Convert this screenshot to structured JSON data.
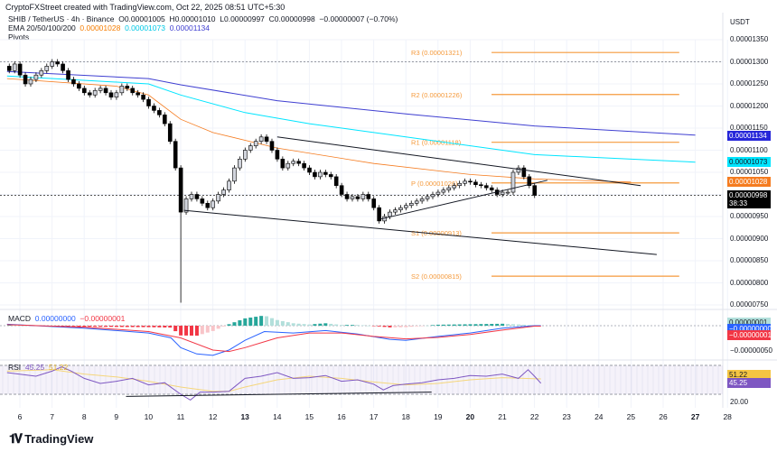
{
  "header": {
    "credit": "CryptoFXStreet created with TradingView.com, Oct 22, 2025 08:51 UTC+5:30",
    "symbol": "SHIB / TetherUS · 4h · Binance",
    "ohlc": {
      "o": "O0.00001005",
      "h": "H0.00001010",
      "l": "L0.00000997",
      "c": "C0.00000998",
      "change": "−0.00000007 (−0.70%)"
    },
    "ema_label": "EMA 20/50/100/200",
    "ema_values": [
      "0.00001028",
      "0.00001073",
      "0.00001134"
    ],
    "pivots_label": "Pivots"
  },
  "price_axis": {
    "currency": "USDT",
    "ticks": [
      "0.00001350",
      "0.00001300",
      "0.00001250",
      "0.00001200",
      "0.00001150",
      "0.00001100",
      "0.00001050",
      "0.00000950",
      "0.00000900",
      "0.00000850",
      "0.00000800",
      "0.00000750"
    ],
    "badges": [
      {
        "text": "0.00001134",
        "bg": "#2626d9",
        "fg": "#ffffff"
      },
      {
        "text": "0.00001073",
        "bg": "#00e5ff",
        "fg": "#131722"
      },
      {
        "text": "0.00001028",
        "bg": "#f57c20",
        "fg": "#ffffff"
      },
      {
        "text": "0.00000998",
        "sub": "38:33",
        "bg": "#000000",
        "fg": "#ffffff"
      }
    ]
  },
  "pivots": [
    {
      "label": "R3 (0.00001321)",
      "value": 1.321e-05
    },
    {
      "label": "R2 (0.00001226)",
      "value": 1.226e-05
    },
    {
      "label": "R1 (0.00001118)",
      "value": 1.118e-05
    },
    {
      "label": "P (0.00001026)",
      "value": 1.026e-05
    },
    {
      "label": "S1 (0.00000913)",
      "value": 9.13e-06
    },
    {
      "label": "S2 (0.00000815)",
      "value": 8.15e-06
    }
  ],
  "macd": {
    "label": "MACD",
    "values": [
      "0.00000000",
      "−0.00000001"
    ],
    "axis_badges": [
      {
        "text": "0.00000001",
        "bg": "#b2dfdb",
        "fg": "#131722"
      },
      {
        "text": "−0.00000000",
        "bg": "#2962ff",
        "fg": "#ffffff"
      },
      {
        "text": "−0.00000001",
        "bg": "#f23645",
        "fg": "#ffffff"
      }
    ],
    "axis_tick": "−0.00000050"
  },
  "rsi": {
    "label": "RSI",
    "values": [
      "45.25",
      "51.22"
    ],
    "axis_badges": [
      {
        "text": "51.22",
        "bg": "#f5c542",
        "fg": "#131722"
      },
      {
        "text": "45.25",
        "bg": "#7e57c2",
        "fg": "#ffffff"
      }
    ],
    "axis_tick": "20.00"
  },
  "time_axis": [
    "6",
    "7",
    "8",
    "9",
    "10",
    "11",
    "12",
    "13",
    "14",
    "15",
    "16",
    "17",
    "18",
    "19",
    "20",
    "21",
    "22",
    "23",
    "24",
    "25",
    "26",
    "27",
    "28"
  ],
  "brand": "TradingView",
  "colors": {
    "ema50": "#f57c20",
    "ema100": "#00e5ff",
    "ema200": "#3f3fd1",
    "pivot": "#f59a3c",
    "up": "#d1d4dc",
    "down": "#000000",
    "macd": "#2962ff",
    "signal": "#f23645",
    "hist_pos": "#26a69a",
    "hist_neg": "#f23645",
    "rsi": "#7e57c2",
    "rsi_ma": "#f5d67a"
  },
  "chart_data": {
    "type": "candlestick",
    "interval": "4h",
    "closes": [
      1.28e-05,
      1.295e-05,
      1.27e-05,
      1.25e-05,
      1.26e-05,
      1.27e-05,
      1.28e-05,
      1.29e-05,
      1.3e-05,
      1.295e-05,
      1.28e-05,
      1.26e-05,
      1.25e-05,
      1.24e-05,
      1.23e-05,
      1.225e-05,
      1.235e-05,
      1.24e-05,
      1.23e-05,
      1.22e-05,
      1.23e-05,
      1.245e-05,
      1.24e-05,
      1.23e-05,
      1.225e-05,
      1.215e-05,
      1.2e-05,
      1.19e-05,
      1.18e-05,
      1.16e-05,
      1.12e-05,
      1.06e-05,
      9.6e-06,
      9.9e-06,
      1e-05,
      9.9e-06,
      9.8e-06,
      9.7e-06,
      9.85e-06,
      1e-05,
      1.01e-05,
      1.03e-05,
      1.06e-05,
      1.08e-05,
      1.1e-05,
      1.11e-05,
      1.12e-05,
      1.13e-05,
      1.12e-05,
      1.1e-05,
      1.08e-05,
      1.06e-05,
      1.07e-05,
      1.075e-05,
      1.07e-05,
      1.06e-05,
      1.05e-05,
      1.04e-05,
      1.05e-05,
      1.045e-05,
      1.04e-05,
      1.02e-05,
      1e-05,
      9.9e-06,
      9.95e-06,
      9.9e-06,
      1e-05,
      9.9e-06,
      9.7e-06,
      9.4e-06,
      9.5e-06,
      9.6e-06,
      9.65e-06,
      9.7e-06,
      9.75e-06,
      9.8e-06,
      9.85e-06,
      9.9e-06,
      9.95e-06,
      1e-05,
      1.005e-05,
      1.01e-05,
      1.015e-05,
      1.02e-05,
      1.025e-05,
      1.03e-05,
      1.028e-05,
      1.022e-05,
      1.02e-05,
      1.015e-05,
      1.01e-05,
      1e-05,
      1.005e-05,
      1.005e-05,
      1.05e-05,
      1.06e-05,
      1.04e-05,
      1.02e-05,
      9.98e-06
    ],
    "crash_low": 7.55e-06,
    "ylim": [
      7.5e-06,
      1.35e-05
    ],
    "ema50": [
      [
        5.6,
        1.262e-05
      ],
      [
        9,
        1.245e-05
      ],
      [
        10,
        1.225e-05
      ],
      [
        11,
        1.17e-05
      ],
      [
        12,
        1.14e-05
      ],
      [
        14,
        1.105e-05
      ],
      [
        17,
        1.07e-05
      ],
      [
        20,
        1.045e-05
      ],
      [
        22,
        1.035e-05
      ],
      [
        25,
        1.028e-05
      ]
    ],
    "ema100": [
      [
        5.6,
        1.268e-05
      ],
      [
        10,
        1.25e-05
      ],
      [
        11,
        1.225e-05
      ],
      [
        13,
        1.185e-05
      ],
      [
        15,
        1.16e-05
      ],
      [
        18,
        1.13e-05
      ],
      [
        22,
        1.09e-05
      ],
      [
        27,
        1.073e-05
      ]
    ],
    "ema200": [
      [
        5.6,
        1.278e-05
      ],
      [
        10,
        1.262e-05
      ],
      [
        11,
        1.248e-05
      ],
      [
        14,
        1.212e-05
      ],
      [
        18,
        1.182e-05
      ],
      [
        22,
        1.155e-05
      ],
      [
        27,
        1.134e-05
      ]
    ],
    "trendlines": [
      [
        [
          14,
          1.13e-05
        ],
        [
          25.3,
          1.02e-05
        ]
      ],
      [
        [
          11.1,
          9.64e-06
        ],
        [
          25.8,
          8.64e-06
        ]
      ],
      [
        [
          17.2,
          9.44e-06
        ],
        [
          22.4,
          1.032e-05
        ]
      ]
    ],
    "pivot_range": [
      19.4,
      26.5
    ],
    "macd_line": [
      [
        5.6,
        3e-08
      ],
      [
        8,
        -5e-08
      ],
      [
        9,
        -1e-07
      ],
      [
        10,
        -1.5e-07
      ],
      [
        10.7,
        -2.5e-07
      ],
      [
        11,
        -4.5e-07
      ],
      [
        11.5,
        -5.8e-07
      ],
      [
        12,
        -6.1e-07
      ],
      [
        12.5,
        -5e-07
      ],
      [
        13,
        -3e-07
      ],
      [
        13.6,
        -1.2e-07
      ],
      [
        14.5,
        -1.5e-07
      ],
      [
        15.5,
        -1e-07
      ],
      [
        16.5,
        -1.7e-07
      ],
      [
        17.5,
        -2.8e-07
      ],
      [
        18,
        -3e-07
      ],
      [
        19,
        -2.2e-07
      ],
      [
        20,
        -1.5e-07
      ],
      [
        21,
        -5e-08
      ],
      [
        22,
        0
      ],
      [
        22.2,
        0
      ]
    ],
    "signal_line": [
      [
        5.6,
        2e-08
      ],
      [
        8,
        -3e-08
      ],
      [
        10,
        -1.2e-07
      ],
      [
        11,
        -2.5e-07
      ],
      [
        12,
        -5e-07
      ],
      [
        12.5,
        -5.3e-07
      ],
      [
        13,
        -4.5e-07
      ],
      [
        14,
        -2.5e-07
      ],
      [
        15,
        -1.5e-07
      ],
      [
        16,
        -1.5e-07
      ],
      [
        17,
        -2.2e-07
      ],
      [
        18,
        -2.7e-07
      ],
      [
        19,
        -2.4e-07
      ],
      [
        20,
        -1.8e-07
      ],
      [
        21,
        -9e-08
      ],
      [
        22,
        -1e-08
      ],
      [
        22.2,
        -1e-08
      ]
    ],
    "rsi_line": [
      [
        5.6,
        60
      ],
      [
        6.5,
        55
      ],
      [
        7,
        62
      ],
      [
        7.3,
        68
      ],
      [
        7.6,
        62
      ],
      [
        8,
        52
      ],
      [
        8.5,
        45
      ],
      [
        9,
        48
      ],
      [
        9.5,
        52
      ],
      [
        10,
        43
      ],
      [
        10.5,
        46
      ],
      [
        11,
        30
      ],
      [
        11.3,
        22
      ],
      [
        11.6,
        33
      ],
      [
        12,
        33
      ],
      [
        12.5,
        34
      ],
      [
        13,
        52
      ],
      [
        13.5,
        55
      ],
      [
        14,
        60
      ],
      [
        14.5,
        52
      ],
      [
        15,
        53
      ],
      [
        15.5,
        56
      ],
      [
        16,
        48
      ],
      [
        16.5,
        50
      ],
      [
        17,
        44
      ],
      [
        17.3,
        36
      ],
      [
        17.6,
        42
      ],
      [
        18,
        44
      ],
      [
        18.5,
        46
      ],
      [
        19,
        50
      ],
      [
        19.5,
        52
      ],
      [
        20,
        56
      ],
      [
        20.5,
        55
      ],
      [
        21,
        58
      ],
      [
        21.5,
        52
      ],
      [
        21.8,
        64
      ],
      [
        22,
        55
      ],
      [
        22.2,
        45.25
      ]
    ],
    "rsi_ma": [
      [
        5.6,
        62
      ],
      [
        7,
        64
      ],
      [
        8,
        58
      ],
      [
        9,
        54
      ],
      [
        10,
        48
      ],
      [
        11,
        40
      ],
      [
        12,
        34
      ],
      [
        12.5,
        34
      ],
      [
        13,
        40
      ],
      [
        14,
        50
      ],
      [
        15,
        55
      ],
      [
        16,
        52
      ],
      [
        17,
        47
      ],
      [
        18,
        43
      ],
      [
        19,
        45
      ],
      [
        20,
        50
      ],
      [
        21,
        53
      ],
      [
        22.2,
        51.22
      ]
    ],
    "rsi_trendline": [
      [
        9.3,
        27
      ],
      [
        18.8,
        33
      ]
    ],
    "rsi_band": [
      30,
      70
    ]
  }
}
